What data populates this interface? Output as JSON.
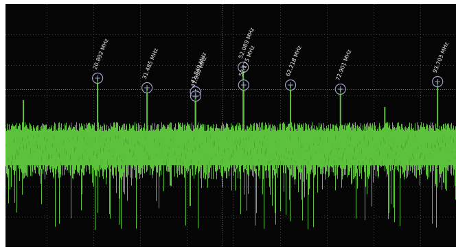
{
  "colors": {
    "background": "#050505",
    "grid": "#4a4a4a",
    "trace": "#5cc23c",
    "trace_dark": "#3f9a28",
    "marker": "#9fa4c8",
    "label": "#e8e8e8"
  },
  "chart_data": {
    "type": "line",
    "title": "",
    "xlabel": "",
    "ylabel": "",
    "x_unit": "MHz",
    "xlim": [
      0,
      100
    ],
    "grid": true,
    "grid_divisions": {
      "x": 10,
      "y": 8
    },
    "noise_floor_description": "dense green noise band spanning the middle of the display with downward spikes",
    "peaks": [
      {
        "label": "20.892 MHz",
        "x": 20.892
      },
      {
        "label": "31.485 MHz",
        "x": 31.485
      },
      {
        "label": "41.840 MHz",
        "x": 41.84
      },
      {
        "label": "41.900 MHz",
        "x": 41.9
      },
      {
        "label": "52.089 MHz",
        "x": 52.089
      },
      {
        "label": "52.175 MHz",
        "x": 52.175
      },
      {
        "label": "62.218 MHz",
        "x": 62.218
      },
      {
        "label": "72.901 MHz",
        "x": 72.901
      },
      {
        "label": "93.703 MHz",
        "x": 93.703
      }
    ]
  }
}
